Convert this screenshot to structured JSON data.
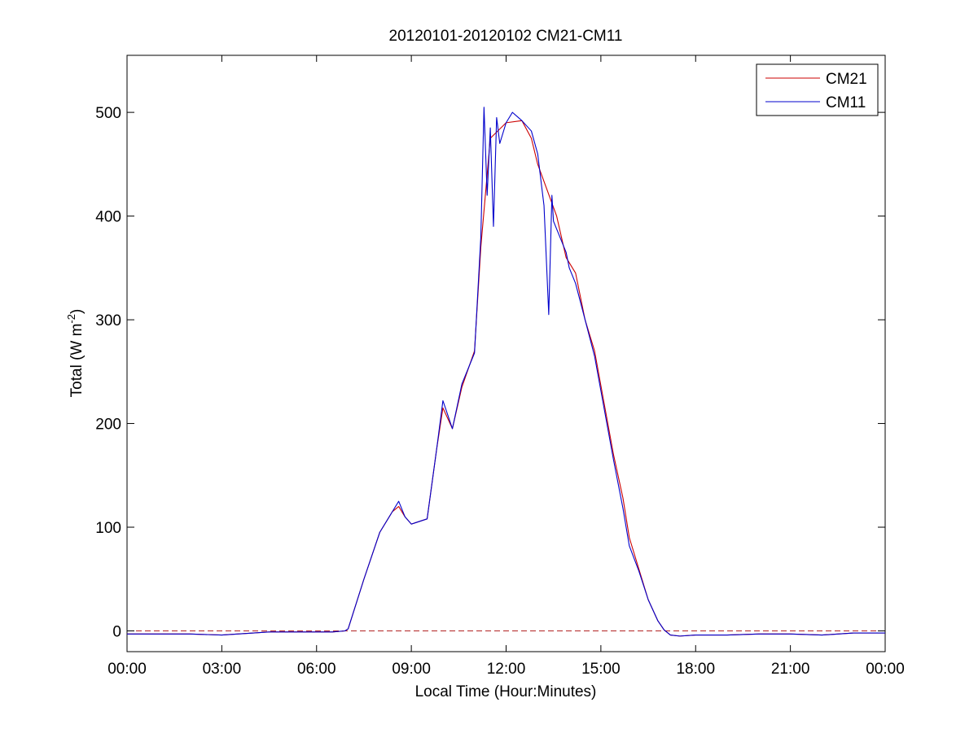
{
  "chart_data": {
    "type": "line",
    "title": "20120101-20120102 CM21-CM11",
    "xlabel": "Local Time (Hour:Minutes)",
    "ylabel": {
      "prefix": "Total (W m",
      "superscript": "-2",
      "suffix": ")"
    },
    "xlim": [
      0,
      24
    ],
    "ylim": [
      -20,
      555
    ],
    "x_ticks": [
      0,
      3,
      6,
      9,
      12,
      15,
      18,
      21,
      24
    ],
    "x_tick_labels": [
      "00:00",
      "03:00",
      "06:00",
      "09:00",
      "12:00",
      "15:00",
      "18:00",
      "21:00",
      "00:00"
    ],
    "y_ticks": [
      0,
      100,
      200,
      300,
      400,
      500
    ],
    "y_tick_labels": [
      "0",
      "100",
      "200",
      "300",
      "400",
      "500"
    ],
    "zero_reference_line": {
      "y": 0,
      "style": "dashed",
      "color": "#b22222"
    },
    "legend_placement": "top-right",
    "grid": false,
    "series": [
      {
        "name": "CM21",
        "color": "#cc0000",
        "x": [
          0,
          1,
          2,
          3,
          4,
          4.5,
          5,
          6,
          6.5,
          6.9,
          7.0,
          7.5,
          8.0,
          8.4,
          8.6,
          8.8,
          9.0,
          9.5,
          9.8,
          10.0,
          10.3,
          10.6,
          11.0,
          11.2,
          11.5,
          12.0,
          12.5,
          12.8,
          13.0,
          13.3,
          13.6,
          13.9,
          14.2,
          14.5,
          14.8,
          15.1,
          15.4,
          15.7,
          15.9,
          16.2,
          16.5,
          16.8,
          17.0,
          17.2,
          17.5,
          18,
          19,
          20,
          21,
          22,
          23,
          24
        ],
        "y": [
          -3,
          -3,
          -3,
          -4,
          -2,
          -1,
          -1,
          -1,
          -1,
          0,
          2,
          50,
          95,
          115,
          120,
          110,
          103,
          108,
          175,
          215,
          195,
          235,
          270,
          370,
          475,
          490,
          492,
          475,
          450,
          425,
          400,
          360,
          345,
          300,
          270,
          220,
          170,
          128,
          90,
          60,
          30,
          10,
          1,
          -4,
          -5,
          -4,
          -4,
          -3,
          -3,
          -4,
          -2,
          -2
        ]
      },
      {
        "name": "CM11",
        "color": "#0000cc",
        "x": [
          0,
          1,
          2,
          3,
          4,
          4.5,
          5,
          6,
          6.5,
          6.9,
          7.0,
          7.5,
          8.0,
          8.4,
          8.6,
          8.8,
          9.0,
          9.5,
          9.8,
          10.0,
          10.3,
          10.6,
          11.0,
          11.2,
          11.3,
          11.4,
          11.5,
          11.6,
          11.7,
          11.8,
          12.0,
          12.2,
          12.5,
          12.8,
          13.0,
          13.2,
          13.35,
          13.45,
          13.5,
          13.7,
          13.9,
          14.0,
          14.2,
          14.5,
          14.8,
          15.1,
          15.4,
          15.7,
          15.9,
          16.2,
          16.5,
          16.8,
          17.0,
          17.2,
          17.5,
          18,
          19,
          20,
          21,
          22,
          23,
          24
        ],
        "y": [
          -3,
          -3,
          -3,
          -4,
          -2,
          -1,
          -1,
          -1,
          -1,
          0,
          2,
          50,
          95,
          115,
          125,
          110,
          103,
          108,
          175,
          222,
          195,
          238,
          268,
          380,
          505,
          420,
          485,
          390,
          495,
          470,
          490,
          500,
          492,
          482,
          460,
          410,
          305,
          420,
          395,
          380,
          365,
          350,
          335,
          300,
          265,
          215,
          165,
          118,
          82,
          58,
          30,
          10,
          1,
          -4,
          -5,
          -4,
          -4,
          -3,
          -3,
          -4,
          -2,
          -2
        ]
      }
    ]
  }
}
